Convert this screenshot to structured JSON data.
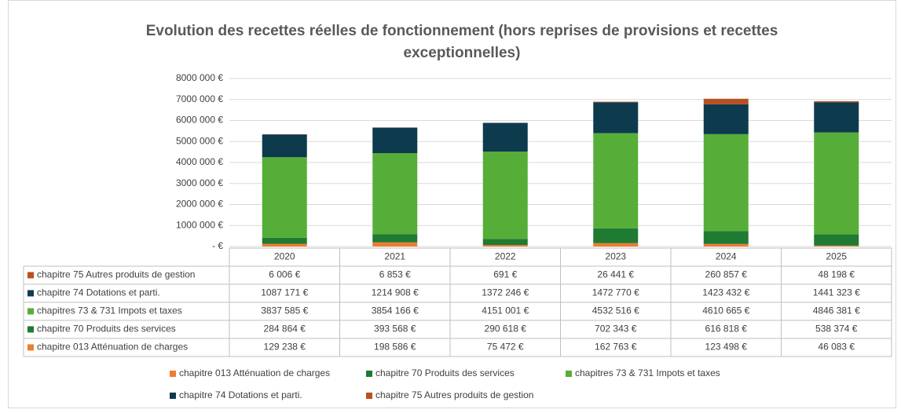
{
  "chart_data": {
    "type": "stacked_bar",
    "title": [
      "Evolution des recettes réelles de fonctionnement (hors reprises de provisions et recettes",
      "exceptionnelles)"
    ],
    "categories": [
      "2020",
      "2021",
      "2022",
      "2023",
      "2024",
      "2025"
    ],
    "ylim": [
      0,
      8000000
    ],
    "yticks": [
      {
        "value": 0,
        "label": "-   €"
      },
      {
        "value": 1000000,
        "label": "1000 000 €"
      },
      {
        "value": 2000000,
        "label": "2000 000 €"
      },
      {
        "value": 3000000,
        "label": "3000 000 €"
      },
      {
        "value": 4000000,
        "label": "4000 000 €"
      },
      {
        "value": 5000000,
        "label": "5000 000 €"
      },
      {
        "value": 6000000,
        "label": "6000 000 €"
      },
      {
        "value": 7000000,
        "label": "7000 000 €"
      },
      {
        "value": 8000000,
        "label": "8000 000 €"
      }
    ],
    "grid": true,
    "legend": "bottom",
    "series": [
      {
        "name": "chapitre 013 Atténuation de charges",
        "color": "#ED7D31",
        "values": [
          129238,
          198586,
          75472,
          162763,
          123498,
          46083
        ],
        "value_labels": [
          "129 238 €",
          "198 586 €",
          "75 472 €",
          "162 763 €",
          "123 498 €",
          "46 083 €"
        ]
      },
      {
        "name": "chapitre 70  Produits des services",
        "color": "#1F7A32",
        "values": [
          284864,
          393568,
          290618,
          702343,
          616818,
          538374
        ],
        "value_labels": [
          "284 864 €",
          "393 568 €",
          "290 618 €",
          "702 343 €",
          "616 818 €",
          "538 374 €"
        ]
      },
      {
        "name": "chapitres 73 & 731 Impots et taxes",
        "color": "#56AE38",
        "values": [
          3837585,
          3854166,
          4151001,
          4532516,
          4610665,
          4846381
        ],
        "value_labels": [
          "3837 585 €",
          "3854 166 €",
          "4151 001 €",
          "4532 516 €",
          "4610 665 €",
          "4846 381 €"
        ]
      },
      {
        "name": "chapitre 74  Dotations et parti.",
        "color": "#0E3A4E",
        "values": [
          1087171,
          1214908,
          1372246,
          1472770,
          1423432,
          1441323
        ],
        "value_labels": [
          "1087 171 €",
          "1214 908 €",
          "1372 246 €",
          "1472 770 €",
          "1423 432 €",
          "1441 323 €"
        ]
      },
      {
        "name": "chapitre 75  Autres produits de gestion",
        "color": "#B9501E",
        "values": [
          6006,
          6853,
          691,
          26441,
          260857,
          48198
        ],
        "value_labels": [
          "6 006 €",
          "6 853 €",
          "691 €",
          "26 441 €",
          "260 857 €",
          "48 198 €"
        ]
      }
    ]
  }
}
